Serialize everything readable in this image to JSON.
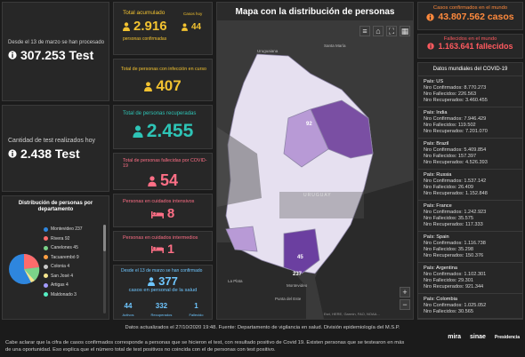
{
  "test_total": {
    "label": "Desde el 13 de marzo se han procesado",
    "value": "307.253 Test"
  },
  "test_today": {
    "label": "Cantidad de test realizados hoy",
    "value": "2.438 Test"
  },
  "distribution": {
    "title": "Distribución de personas por departamento",
    "items": [
      {
        "label": "Montevideo 237",
        "color": "#2e86de"
      },
      {
        "label": "Rivera 92",
        "color": "#ff6b6b"
      },
      {
        "label": "Canelones 45",
        "color": "#7bd389"
      },
      {
        "label": "Tacuarembó 9",
        "color": "#ff9f43"
      },
      {
        "label": "Colonia 4",
        "color": "#c8c8c8"
      },
      {
        "label": "San José 4",
        "color": "#f6e58d"
      },
      {
        "label": "Artigas 4",
        "color": "#a29bfe"
      },
      {
        "label": "Maldonado 3",
        "color": "#55efc4"
      }
    ]
  },
  "acum": {
    "label": "Total acumulado",
    "value": "2.916",
    "sub": "personas confirmadas",
    "side_label": "Casos hoy",
    "side_value": "44"
  },
  "active": {
    "label": "Total de personas con infección en curso",
    "value": "407"
  },
  "recov": {
    "label": "Total de personas recuperadas",
    "value": "2.455"
  },
  "dead": {
    "label": "Total de personas fallecidas por COVID-19",
    "value": "54"
  },
  "icu": {
    "label": "Personas en cuidados intensivos",
    "value": "8"
  },
  "inter": {
    "label": "Personas en cuidados intermedios",
    "value": "1"
  },
  "health": {
    "label": "Desde el 13 de marzo se han confirmado",
    "value": "377",
    "sub": "casos en personal de la salud",
    "stats": [
      {
        "value": "44",
        "label": "Activos"
      },
      {
        "value": "332",
        "label": "Recuperados"
      },
      {
        "value": "1",
        "label": "Fallecido"
      }
    ]
  },
  "map": {
    "title": "Mapa con la distribución de personas",
    "labels": {
      "city_top": "Santa María",
      "uruguaiana": "Uruguaiana",
      "uruguay": "URUGUAY",
      "la_plata": "La Plata",
      "montevideo": "Montevideo",
      "punta": "Punta del Este"
    },
    "values": {
      "rivera": "92",
      "canelones": "45",
      "montevideo": "237"
    },
    "attribution": "Esri, HERE, Garmin, FAO, NOAA..."
  },
  "world_conf": {
    "label": "Casos confirmados en el mundo",
    "value": "43.807.562 casos"
  },
  "world_dead": {
    "label": "Fallecidos en el mundo",
    "value": "1.163.641 fallecidos"
  },
  "world_list": {
    "title": "Datos mundiales del COVID-19",
    "countries": [
      {
        "name": "País: US",
        "conf": "Nro Confirmados: 8.770.273",
        "dead": "Nro Fallecidos: 226.563",
        "rec": "Nro Recuperados: 3.460.455"
      },
      {
        "name": "País: India",
        "conf": "Nro Confirmados: 7.946.429",
        "dead": "Nro Fallecidos: 119.502",
        "rec": "Nro Recuperados: 7.201.070"
      },
      {
        "name": "País: Brazil",
        "conf": "Nro Confirmados: 5.409.854",
        "dead": "Nro Fallecidos: 157.397",
        "rec": "Nro Recuperados: 4.526.393"
      },
      {
        "name": "País: Russia",
        "conf": "Nro Confirmados: 1.537.142",
        "dead": "Nro Fallecidos: 26.409",
        "rec": "Nro Recuperados: 1.152.848"
      },
      {
        "name": "País: France",
        "conf": "Nro Confirmados: 1.242.923",
        "dead": "Nro Fallecidos: 35.575",
        "rec": "Nro Recuperados: 117.333"
      },
      {
        "name": "País: Spain",
        "conf": "Nro Confirmados: 1.116.738",
        "dead": "Nro Fallecidos: 35.298",
        "rec": "Nro Recuperados: 150.376"
      },
      {
        "name": "País: Argentina",
        "conf": "Nro Confirmados: 1.102.301",
        "dead": "Nro Fallecidos: 29.301",
        "rec": "Nro Recuperados: 921.344"
      },
      {
        "name": "País: Colombia",
        "conf": "Nro Confirmados: 1.025.052",
        "dead": "Nro Fallecidos: 30.565",
        "rec": ""
      }
    ]
  },
  "footer": {
    "line1": "Datos actualizados el 27/10/2020 19:48. Fuente: Departamento de vigilancia en salud. División epidemiología del M.S.P.",
    "line2": "Cabe aclarar que la cifra de casos confirmados corresponde a personas que se hicieron el test, con resultado positivo de Covid 19. Existen personas que se testearon en más de una oportunidad. Eso explica que el número total de test positivos no coincida con el de personas con test positivo.",
    "logos": [
      "mira",
      "sinae",
      "Presidencia"
    ]
  },
  "colors": {
    "yellow": "#f2c230",
    "teal": "#2ec4b6",
    "red": "#ff5a5f",
    "orange": "#ff8a3d"
  }
}
